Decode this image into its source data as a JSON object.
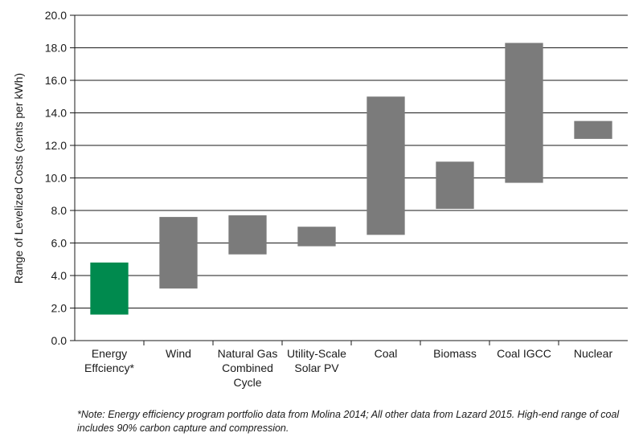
{
  "chart_data": {
    "type": "bar",
    "subtype": "floating-range",
    "ylabel": "Range of Levelized Costs (cents per kWh)",
    "ylim": [
      0,
      20
    ],
    "yticks": [
      "0.0",
      "2.0",
      "4.0",
      "6.0",
      "8.0",
      "10.0",
      "12.0",
      "14.0",
      "16.0",
      "18.0",
      "20.0"
    ],
    "grid": true,
    "categories": [
      {
        "label": [
          "Energy",
          "Effciency*"
        ],
        "low": 1.6,
        "high": 4.8,
        "color": "#008a4e"
      },
      {
        "label": [
          "Wind"
        ],
        "low": 3.2,
        "high": 7.6,
        "color": "#7b7b7b"
      },
      {
        "label": [
          "Natural Gas",
          "Combined",
          "Cycle"
        ],
        "low": 5.3,
        "high": 7.7,
        "color": "#7b7b7b"
      },
      {
        "label": [
          "Utility-Scale",
          "Solar PV"
        ],
        "low": 5.8,
        "high": 7.0,
        "color": "#7b7b7b"
      },
      {
        "label": [
          "Coal"
        ],
        "low": 6.5,
        "high": 15.0,
        "color": "#7b7b7b"
      },
      {
        "label": [
          "Biomass"
        ],
        "low": 8.1,
        "high": 11.0,
        "color": "#7b7b7b"
      },
      {
        "label": [
          "Coal IGCC"
        ],
        "low": 9.7,
        "high": 18.3,
        "color": "#7b7b7b"
      },
      {
        "label": [
          "Nuclear"
        ],
        "low": 12.4,
        "high": 13.5,
        "color": "#7b7b7b"
      }
    ]
  },
  "footnote": "*Note: Energy efficiency program portfolio data from Molina 2014; All other data from Lazard 2015. High-end range of coal includes 90% carbon capture and compression."
}
